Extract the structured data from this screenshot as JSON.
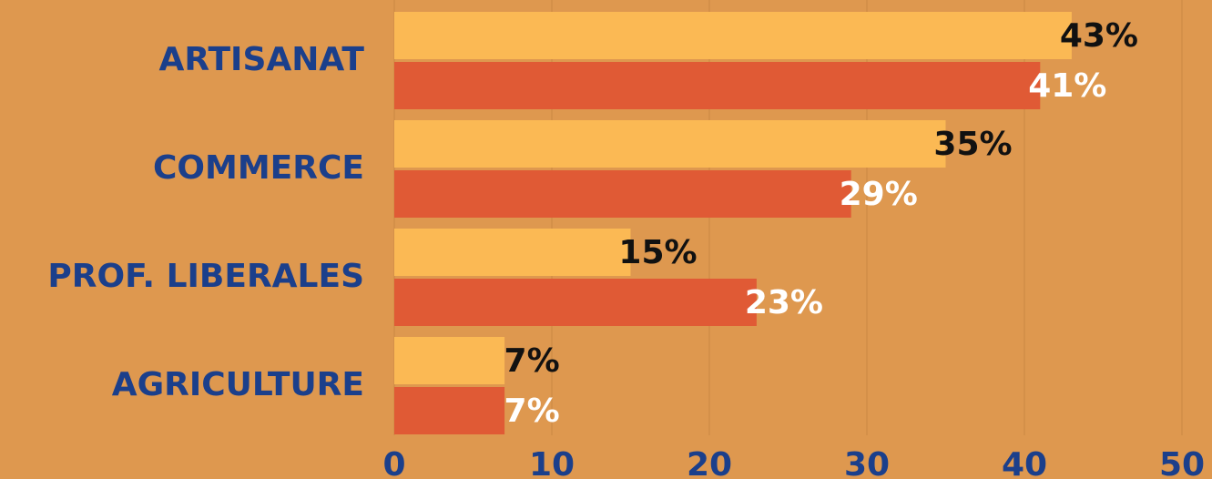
{
  "chart_data": {
    "type": "bar",
    "orientation": "horizontal",
    "categories": [
      "ARTISANAT",
      "COMMERCE",
      "PROF. LIBERALES",
      "AGRICULTURE"
    ],
    "series": [
      {
        "color": "#FBB954",
        "values": [
          43,
          35,
          15,
          7
        ],
        "labels": [
          "43%",
          "35%",
          "15%",
          "7%"
        ],
        "label_color": "#111111"
      },
      {
        "color": "#E05A35",
        "values": [
          41,
          29,
          23,
          7
        ],
        "labels": [
          "41%",
          "29%",
          "23%",
          "7%"
        ],
        "label_color": "#FFFFFF"
      }
    ],
    "xlim": [
      0,
      50
    ],
    "xticks": [
      "0",
      "10",
      "20",
      "30",
      "40",
      "50"
    ],
    "grid": true,
    "legend": "none",
    "colors": {
      "background": "#DE984F",
      "category_label": "#1B3F8B",
      "tick_label": "#1B3F8B",
      "gridline": "#C98843"
    }
  }
}
